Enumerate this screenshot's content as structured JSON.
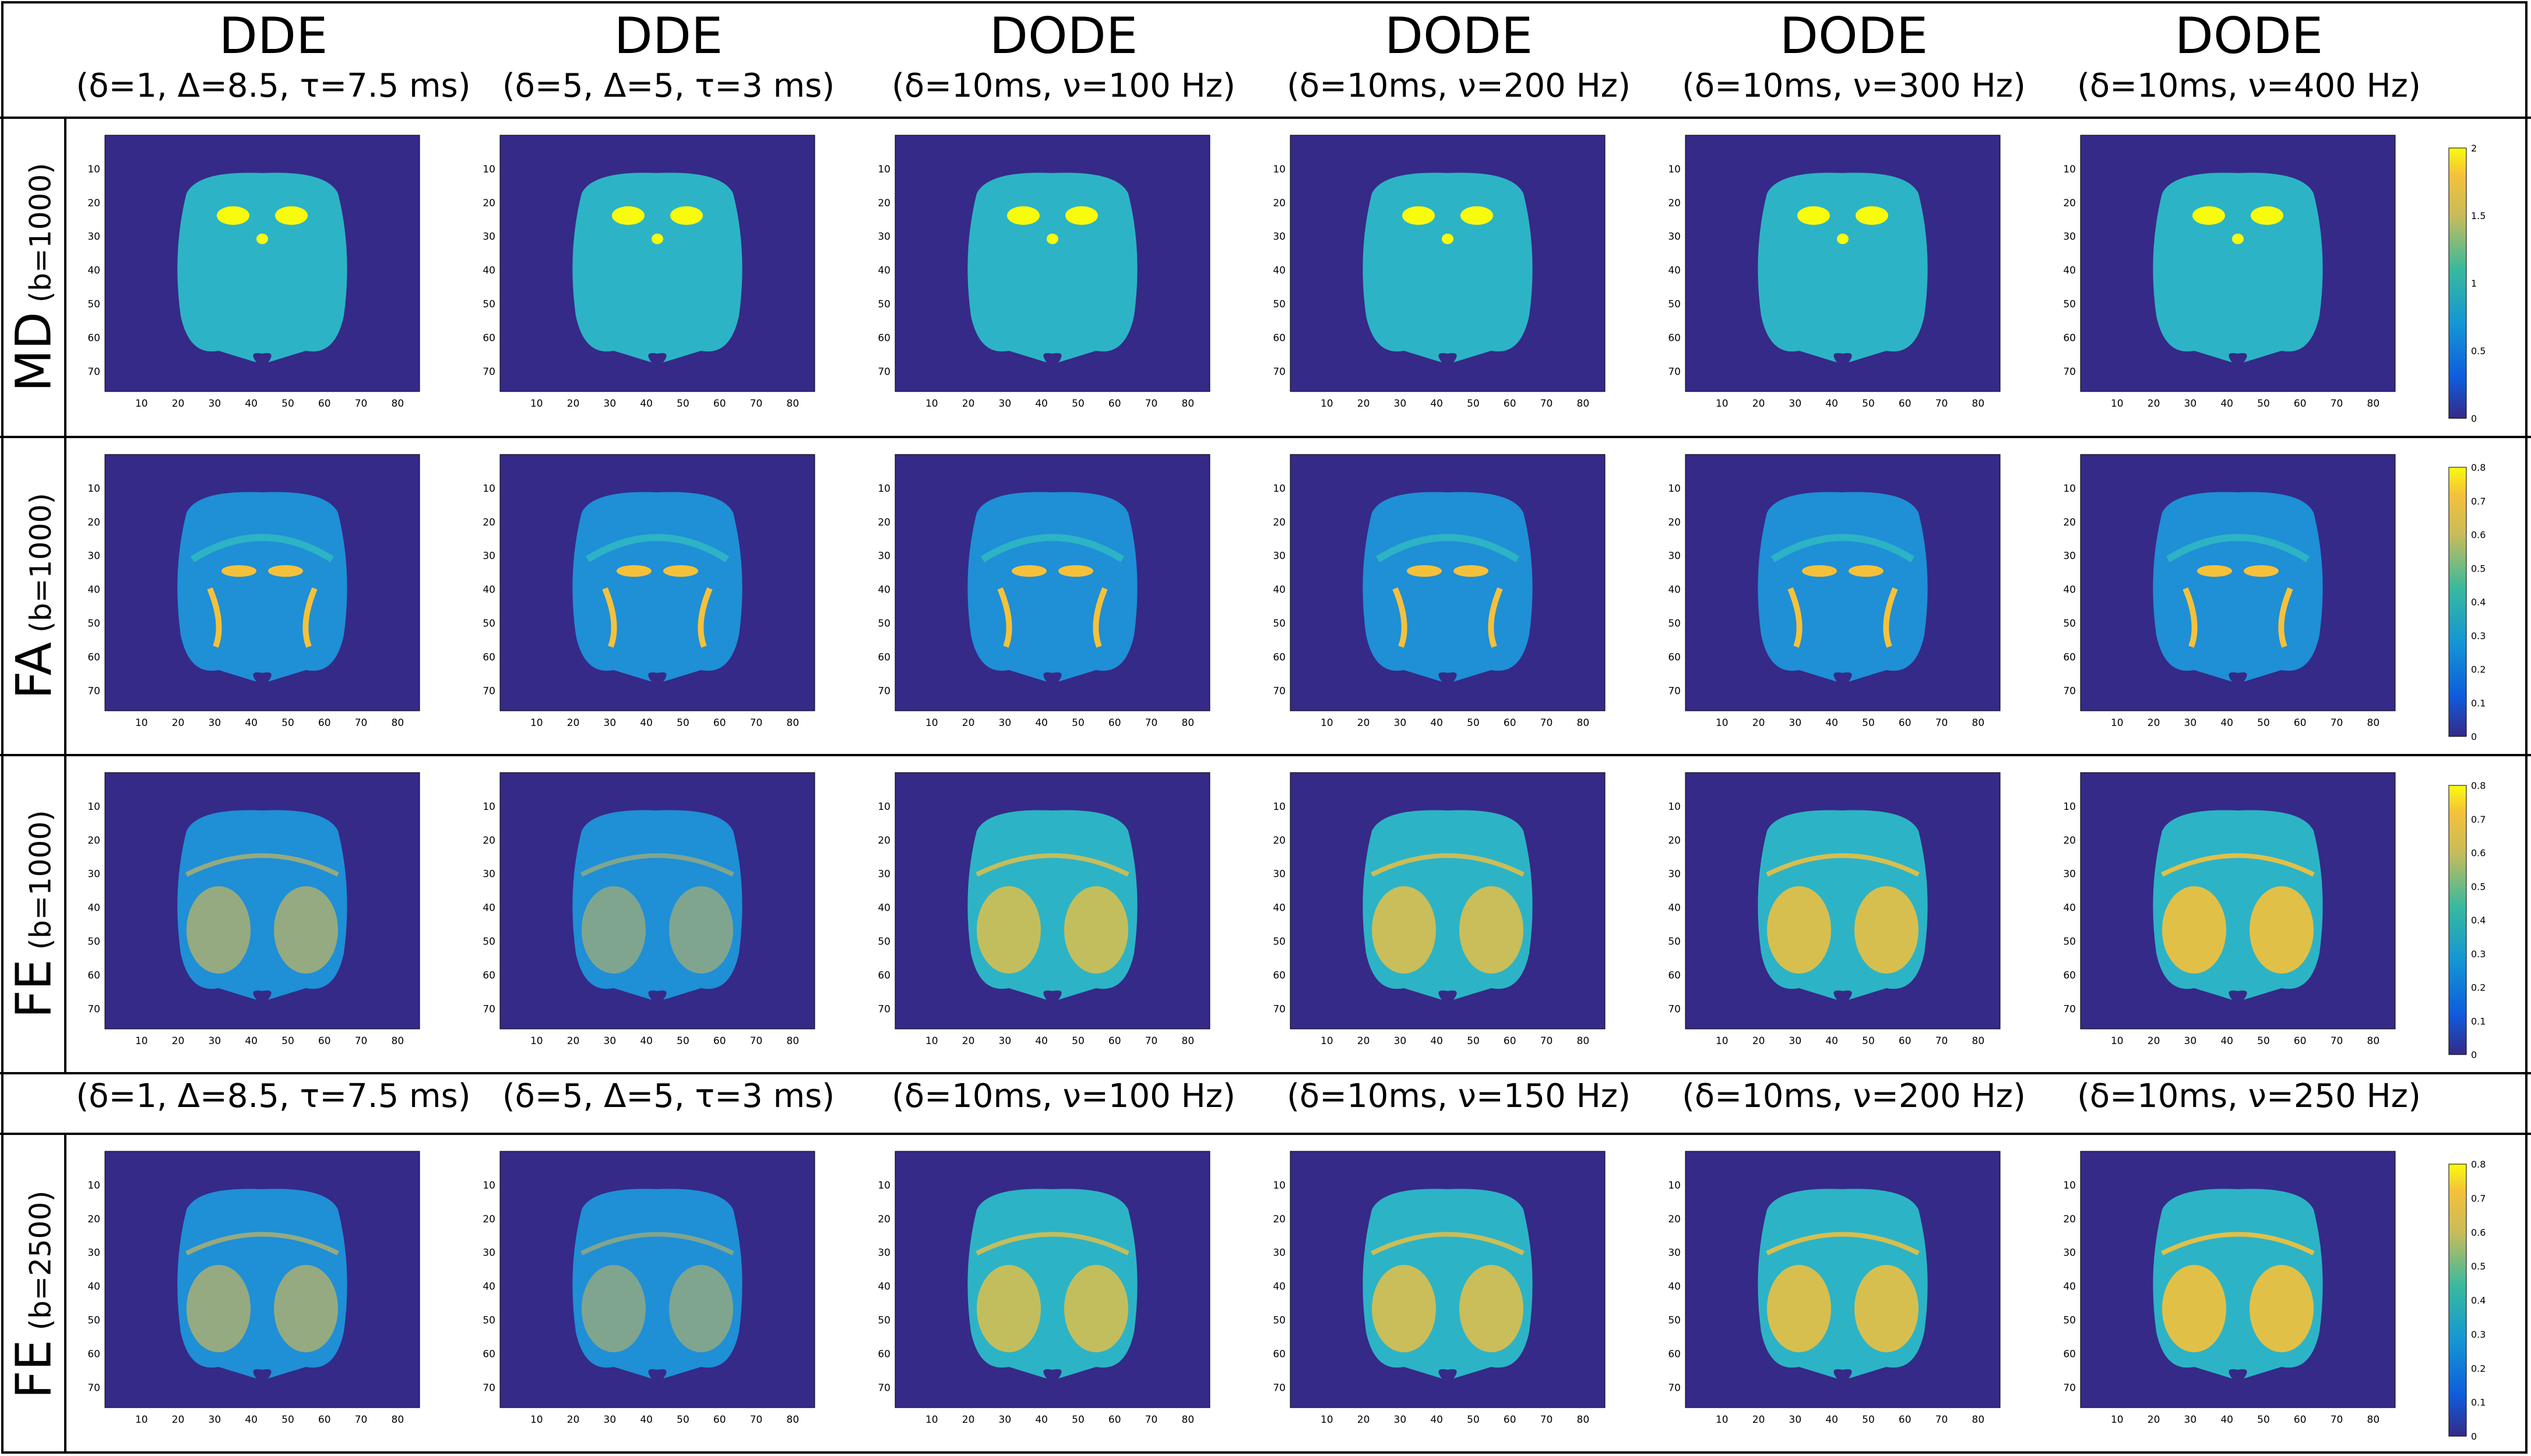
{
  "columns": [
    {
      "title": "DDE",
      "params": "(δ=1, Δ=8.5, τ=7.5 ms)",
      "params_b2500": "(δ=1, Δ=8.5, τ=7.5 ms)"
    },
    {
      "title": "DDE",
      "params": "(δ=5, Δ=5, τ=3 ms)",
      "params_b2500": "(δ=5, Δ=5, τ=3 ms)"
    },
    {
      "title": "DODE",
      "params": "(δ=10ms, ν=100 Hz)",
      "params_b2500": "(δ=10ms, ν=100 Hz)"
    },
    {
      "title": "DODE",
      "params": "(δ=10ms, ν=200 Hz)",
      "params_b2500": "(δ=10ms, ν=150 Hz)"
    },
    {
      "title": "DODE",
      "params": "(δ=10ms, ν=300 Hz)",
      "params_b2500": "(δ=10ms, ν=200 Hz)"
    },
    {
      "title": "DODE",
      "params": "(δ=10ms, ν=400 Hz)",
      "params_b2500": "(δ=10ms, ν=250 Hz)"
    }
  ],
  "rows": [
    {
      "metric": "MD",
      "bvalue": "(b=1000)",
      "colorbar_ticks": [
        "2",
        "1.5",
        "1",
        "0.5",
        "0"
      ]
    },
    {
      "metric": "FA",
      "bvalue": "(b=1000)",
      "colorbar_ticks": [
        "0.8",
        "0.7",
        "0.6",
        "0.5",
        "0.4",
        "0.3",
        "0.2",
        "0.1",
        "0"
      ]
    },
    {
      "metric": "FE",
      "bvalue": "(b=1000)",
      "colorbar_ticks": [
        "0.8",
        "0.7",
        "0.6",
        "0.5",
        "0.4",
        "0.3",
        "0.2",
        "0.1",
        "0"
      ]
    },
    {
      "metric": "FE",
      "bvalue": "(b=2500)",
      "colorbar_ticks": [
        "0.8",
        "0.7",
        "0.6",
        "0.5",
        "0.4",
        "0.3",
        "0.2",
        "0.1",
        "0"
      ]
    }
  ],
  "axes": {
    "x_ticks": [
      "10",
      "20",
      "30",
      "40",
      "50",
      "60",
      "70",
      "80"
    ],
    "y_ticks": [
      "10",
      "20",
      "30",
      "40",
      "50",
      "60",
      "70"
    ]
  },
  "colors": {
    "background": "#352a87",
    "brain_low": "#1f8fd6",
    "brain_mid": "#2db3c6",
    "brain_high": "#f5c13a",
    "brain_max": "#f9fb0e"
  }
}
